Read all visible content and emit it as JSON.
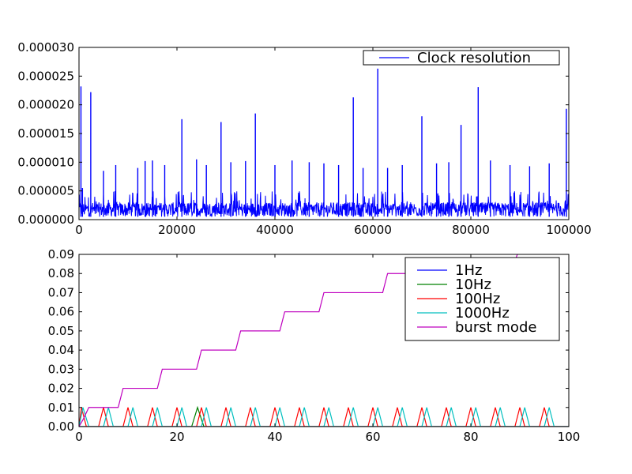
{
  "chart_data": [
    {
      "type": "line",
      "title": "",
      "xlabel": "",
      "ylabel": "",
      "xlim": [
        0,
        100000
      ],
      "ylim": [
        0,
        3e-05
      ],
      "x_ticks": [
        "0",
        "20000",
        "40000",
        "60000",
        "80000",
        "100000"
      ],
      "y_ticks": [
        "0.000000",
        "0.000005",
        "0.000010",
        "0.000015",
        "0.000020",
        "0.000025",
        "0.000030"
      ],
      "legend_position": "top-right",
      "series": [
        {
          "name": "Clock resolution",
          "color": "#0000ff",
          "baseline_range": [
            5e-07,
            3e-06
          ],
          "spikes": [
            {
              "x": 400,
              "y": 2.32e-05
            },
            {
              "x": 700,
              "y": 5.5e-06
            },
            {
              "x": 2400,
              "y": 2.22e-05
            },
            {
              "x": 5000,
              "y": 8.5e-06
            },
            {
              "x": 7500,
              "y": 9.5e-06
            },
            {
              "x": 12000,
              "y": 9e-06
            },
            {
              "x": 13500,
              "y": 1.02e-05
            },
            {
              "x": 15000,
              "y": 1.03e-05
            },
            {
              "x": 17500,
              "y": 9.5e-06
            },
            {
              "x": 21000,
              "y": 1.75e-05
            },
            {
              "x": 24000,
              "y": 1.05e-05
            },
            {
              "x": 26000,
              "y": 9.5e-06
            },
            {
              "x": 29000,
              "y": 1.7e-05
            },
            {
              "x": 31000,
              "y": 1e-05
            },
            {
              "x": 34000,
              "y": 1.02e-05
            },
            {
              "x": 36000,
              "y": 1.85e-05
            },
            {
              "x": 40000,
              "y": 9.5e-06
            },
            {
              "x": 43500,
              "y": 1.03e-05
            },
            {
              "x": 47000,
              "y": 1e-05
            },
            {
              "x": 50000,
              "y": 9.8e-06
            },
            {
              "x": 53000,
              "y": 9.5e-06
            },
            {
              "x": 56000,
              "y": 2.13e-05
            },
            {
              "x": 58000,
              "y": 9e-06
            },
            {
              "x": 61000,
              "y": 2.63e-05
            },
            {
              "x": 63000,
              "y": 9e-06
            },
            {
              "x": 66000,
              "y": 9.5e-06
            },
            {
              "x": 70000,
              "y": 1.8e-05
            },
            {
              "x": 73000,
              "y": 9.8e-06
            },
            {
              "x": 75500,
              "y": 1e-05
            },
            {
              "x": 78000,
              "y": 1.65e-05
            },
            {
              "x": 81500,
              "y": 2.31e-05
            },
            {
              "x": 84000,
              "y": 1.03e-05
            },
            {
              "x": 88000,
              "y": 9.5e-06
            },
            {
              "x": 92000,
              "y": 9.3e-06
            },
            {
              "x": 96000,
              "y": 9.8e-06
            },
            {
              "x": 99500,
              "y": 1.93e-05
            }
          ]
        }
      ]
    },
    {
      "type": "line",
      "title": "",
      "xlabel": "",
      "ylabel": "",
      "xlim": [
        0,
        100
      ],
      "ylim": [
        0,
        0.09
      ],
      "x_ticks": [
        "0",
        "20",
        "40",
        "60",
        "80",
        "100"
      ],
      "y_ticks": [
        "0.00",
        "0.01",
        "0.02",
        "0.03",
        "0.04",
        "0.05",
        "0.06",
        "0.07",
        "0.08",
        "0.09"
      ],
      "legend_position": "top-right",
      "series": [
        {
          "name": "1Hz",
          "color": "#0000ff",
          "x": [
            0,
            100
          ],
          "y": [
            0,
            0
          ]
        },
        {
          "name": "10Hz",
          "color": "#008000",
          "x": [
            0,
            23,
            24.2,
            25.5,
            100
          ],
          "y": [
            0,
            0,
            0.01,
            0,
            0
          ]
        },
        {
          "name": "100Hz",
          "color": "#ff0000",
          "x": [
            0,
            0.5,
            1.5,
            4,
            5,
            6,
            9,
            10,
            11,
            14,
            15,
            16,
            19,
            20,
            21,
            24,
            25,
            26,
            29,
            30,
            31,
            34,
            35,
            36,
            39,
            40,
            41,
            44,
            45,
            46,
            49,
            50,
            51,
            54,
            55,
            56,
            59,
            60,
            61,
            64,
            65,
            66,
            69,
            70,
            71,
            74,
            75,
            76,
            79,
            80,
            81,
            84,
            85,
            86,
            89,
            90,
            91,
            94,
            95,
            96,
            100
          ],
          "y": [
            0,
            0.01,
            0,
            0,
            0.01,
            0,
            0,
            0.01,
            0,
            0,
            0.01,
            0,
            0,
            0.01,
            0,
            0,
            0.01,
            0,
            0,
            0.01,
            0,
            0,
            0.01,
            0,
            0,
            0.01,
            0,
            0,
            0.01,
            0,
            0,
            0.01,
            0,
            0,
            0.01,
            0,
            0,
            0.01,
            0,
            0,
            0.01,
            0,
            0,
            0.01,
            0,
            0,
            0.01,
            0,
            0,
            0.01,
            0,
            0,
            0.01,
            0,
            0,
            0.01,
            0,
            0,
            0.01,
            0,
            0
          ]
        },
        {
          "name": "1000Hz",
          "color": "#00bfbf",
          "x": [
            0,
            0.8,
            2,
            5,
            6,
            7,
            10,
            11,
            12,
            15,
            16,
            17,
            20,
            21,
            22,
            25,
            26,
            27,
            30,
            31,
            32,
            35,
            36,
            37,
            40,
            41,
            42,
            45,
            46,
            47,
            50,
            51,
            52,
            55,
            56,
            57,
            60,
            61,
            62,
            65,
            66,
            67,
            70,
            71,
            72,
            75,
            76,
            77,
            80,
            81,
            82,
            85,
            86,
            87,
            90,
            91,
            92,
            95,
            96,
            97,
            100
          ],
          "y": [
            0,
            0.01,
            0,
            0,
            0.01,
            0,
            0,
            0.01,
            0,
            0,
            0.01,
            0,
            0,
            0.01,
            0,
            0,
            0.01,
            0,
            0,
            0.01,
            0,
            0,
            0.01,
            0,
            0,
            0.01,
            0,
            0,
            0.01,
            0,
            0,
            0.01,
            0,
            0,
            0.01,
            0,
            0,
            0.01,
            0,
            0,
            0.01,
            0,
            0,
            0.01,
            0,
            0,
            0.01,
            0,
            0,
            0.01,
            0,
            0,
            0.01,
            0,
            0,
            0.01,
            0,
            0,
            0.01,
            0,
            0
          ]
        },
        {
          "name": "burst mode",
          "color": "#bf00bf",
          "x": [
            0,
            0.9,
            2,
            8,
            9,
            16,
            17,
            24,
            25,
            32,
            33,
            41,
            42,
            49,
            50,
            62,
            63,
            88,
            89.5,
            100
          ],
          "y": [
            0.0,
            0.004,
            0.01,
            0.01,
            0.02,
            0.02,
            0.03,
            0.03,
            0.04,
            0.04,
            0.05,
            0.05,
            0.06,
            0.06,
            0.07,
            0.07,
            0.08,
            0.08,
            0.09,
            0.105
          ]
        }
      ]
    }
  ]
}
